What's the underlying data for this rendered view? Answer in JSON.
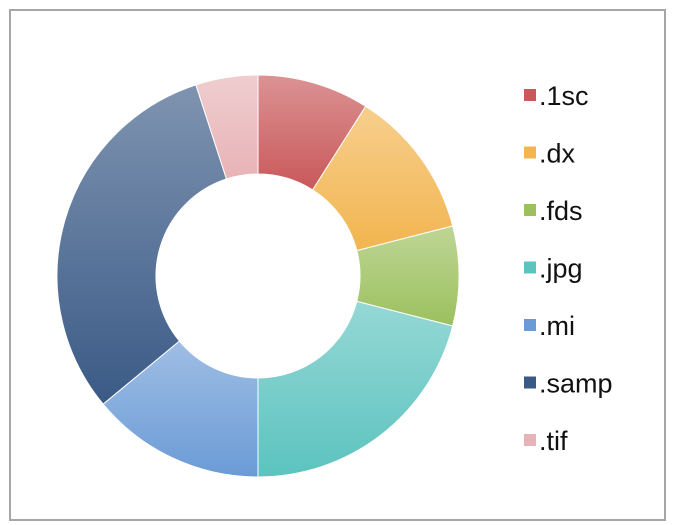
{
  "chart_data": {
    "type": "donut",
    "categories": [
      ".1sc",
      ".dx",
      ".fds",
      ".jpg",
      ".mi",
      ".samp",
      ".tif"
    ],
    "values": [
      9,
      12,
      8,
      21,
      14,
      31,
      5
    ],
    "colors": [
      "#c9585a",
      "#f2b550",
      "#9cc05e",
      "#5cc3bf",
      "#6b9bd6",
      "#3a5a86",
      "#e7b3b6"
    ],
    "legend": "right"
  }
}
